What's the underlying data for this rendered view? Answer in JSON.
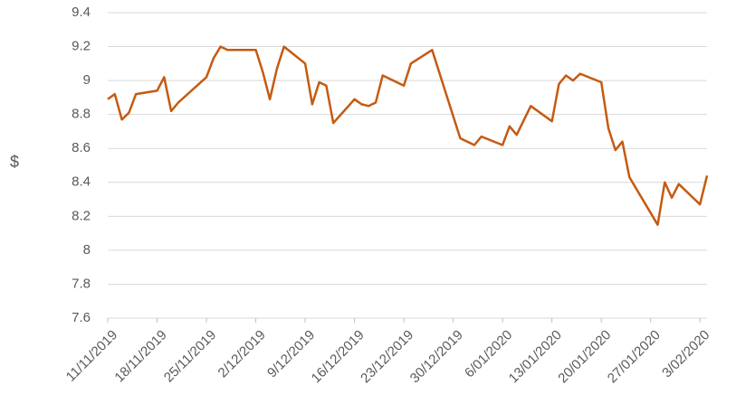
{
  "chart_data": {
    "type": "line",
    "y_label": "$",
    "x": [
      "11/11/2019",
      "12/11/2019",
      "13/11/2019",
      "14/11/2019",
      "15/11/2019",
      "18/11/2019",
      "19/11/2019",
      "20/11/2019",
      "21/11/2019",
      "25/11/2019",
      "26/11/2019",
      "27/11/2019",
      "28/11/2019",
      "2/12/2019",
      "3/12/2019",
      "4/12/2019",
      "5/12/2019",
      "6/12/2019",
      "9/12/2019",
      "10/12/2019",
      "11/12/2019",
      "12/12/2019",
      "13/12/2019",
      "16/12/2019",
      "17/12/2019",
      "18/12/2019",
      "19/12/2019",
      "20/12/2019",
      "23/12/2019",
      "24/12/2019",
      "27/12/2019",
      "31/12/2019",
      "2/01/2020",
      "3/01/2020",
      "6/01/2020",
      "7/01/2020",
      "8/01/2020",
      "10/01/2020",
      "13/01/2020",
      "14/01/2020",
      "15/01/2020",
      "16/01/2020",
      "17/01/2020",
      "20/01/2020",
      "21/01/2020",
      "22/01/2020",
      "23/01/2020",
      "24/01/2020",
      "28/01/2020",
      "29/01/2020",
      "30/01/2020",
      "31/01/2020",
      "3/02/2020",
      "4/02/2020"
    ],
    "series": [
      {
        "color": "#c55a11",
        "values": [
          8.89,
          8.92,
          8.77,
          8.81,
          8.92,
          8.94,
          9.02,
          8.82,
          8.87,
          9.02,
          9.13,
          9.2,
          9.18,
          9.18,
          9.05,
          8.89,
          9.07,
          9.2,
          9.1,
          8.86,
          8.99,
          8.97,
          8.75,
          8.89,
          8.86,
          8.85,
          8.87,
          9.03,
          8.97,
          9.1,
          9.18,
          8.66,
          8.62,
          8.67,
          8.62,
          8.73,
          8.68,
          8.85,
          8.76,
          8.98,
          9.03,
          9.0,
          9.04,
          8.99,
          8.72,
          8.59,
          8.64,
          8.43,
          8.15,
          8.4,
          8.31,
          8.39,
          8.27,
          8.44
        ]
      }
    ],
    "xlim": [
      "11/11/2019",
      "4/02/2020"
    ],
    "xticks": [
      "11/11/2019",
      "18/11/2019",
      "25/11/2019",
      "2/12/2019",
      "9/12/2019",
      "16/12/2019",
      "23/12/2019",
      "30/12/2019",
      "6/01/2020",
      "13/01/2020",
      "20/01/2020",
      "27/01/2020",
      "3/02/2020"
    ],
    "ylim": [
      7.6,
      9.4
    ],
    "yticks": [
      7.6,
      7.8,
      8,
      8.2,
      8.4,
      8.6,
      8.8,
      9,
      9.2,
      9.4
    ],
    "grid": true
  }
}
